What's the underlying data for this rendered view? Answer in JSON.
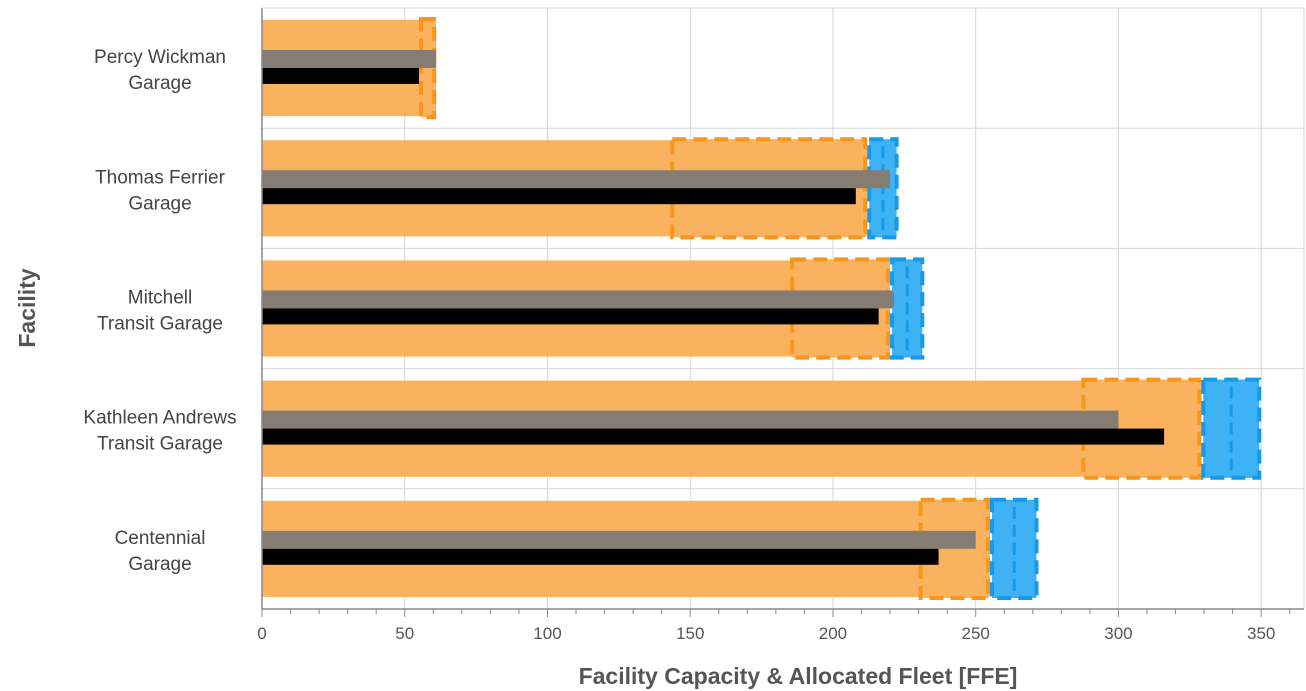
{
  "chart_data": {
    "type": "bar",
    "orientation": "horizontal",
    "title": "",
    "xlabel": "Facility Capacity & Allocated Fleet [FFE]",
    "ylabel": "Facility",
    "xlim": [
      0,
      365
    ],
    "xticks": [
      0,
      50,
      100,
      150,
      200,
      250,
      300,
      350
    ],
    "grid": true,
    "colors": {
      "capacity": "#fbb25f",
      "capacity_dash": "#f7961c",
      "expansion": "#3fb1f5",
      "expansion_dash": "#1599e8",
      "allocated": "#857d74",
      "fleet": "#000000"
    },
    "categories": [
      {
        "line1": "Percy Wickman",
        "line2": "Garage"
      },
      {
        "line1": "Thomas Ferrier",
        "line2": "Garage"
      },
      {
        "line1": "Mitchell",
        "line2": "Transit Garage"
      },
      {
        "line1": "Kathleen Andrews",
        "line2": "Transit Garage"
      },
      {
        "line1": "Centennial",
        "line2": "Garage"
      }
    ],
    "series": [
      {
        "key": "capacity_base",
        "values": [
          61,
          212,
          220,
          329,
          255
        ]
      },
      {
        "key": "capacity_range",
        "from": [
          55,
          143,
          185,
          287,
          230
        ],
        "to": [
          61,
          212,
          220,
          329,
          255
        ]
      },
      {
        "key": "expansion_range",
        "from": [
          61,
          212,
          220,
          329,
          255
        ],
        "to": [
          61,
          223,
          232,
          350,
          272
        ]
      },
      {
        "key": "allocated",
        "values": [
          61,
          220,
          221,
          300,
          250
        ]
      },
      {
        "key": "fleet",
        "values": [
          55,
          208,
          216,
          316,
          237
        ]
      }
    ]
  }
}
